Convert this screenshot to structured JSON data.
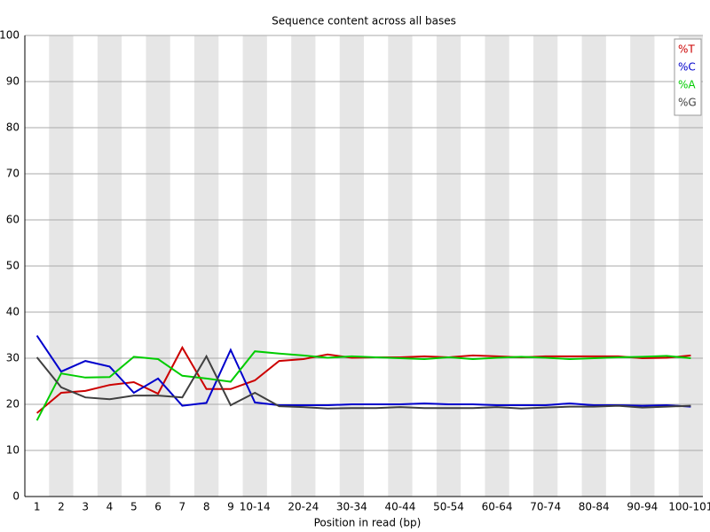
{
  "chart_data": {
    "type": "line",
    "title": "Sequence content across all bases",
    "x_label": "Position in read (bp)",
    "categories": [
      "1",
      "2",
      "3",
      "4",
      "5",
      "6",
      "7",
      "8",
      "9",
      "10-14",
      null,
      "20-24",
      null,
      "30-34",
      null,
      "40-44",
      null,
      "50-54",
      null,
      "60-64",
      null,
      "70-74",
      null,
      "80-84",
      null,
      "90-94",
      null,
      "100-101"
    ],
    "series": [
      {
        "name": "%T",
        "color": "#cc0000",
        "values": [
          18.1,
          22.5,
          22.9,
          24.2,
          24.8,
          22.3,
          32.3,
          23.3,
          23.3,
          25.2,
          29.4,
          29.8,
          30.8,
          30.1,
          30.2,
          30.2,
          30.4,
          30.2,
          30.6,
          30.4,
          30.2,
          30.4,
          30.4,
          30.4,
          30.4,
          30.0,
          30.1,
          30.6
        ]
      },
      {
        "name": "%C",
        "color": "#0000cc",
        "values": [
          34.9,
          27.1,
          29.4,
          28.2,
          22.5,
          25.6,
          19.7,
          20.3,
          31.8,
          20.4,
          19.8,
          19.8,
          19.8,
          20.0,
          20.0,
          20.0,
          20.2,
          20.0,
          20.0,
          19.8,
          19.8,
          19.8,
          20.2,
          19.8,
          19.8,
          19.7,
          19.8,
          19.5
        ]
      },
      {
        "name": "%A",
        "color": "#00cc00",
        "values": [
          16.5,
          26.7,
          25.8,
          25.9,
          30.3,
          29.8,
          26.2,
          25.6,
          24.9,
          31.5,
          31.0,
          30.6,
          30.1,
          30.4,
          30.2,
          30.0,
          29.8,
          30.2,
          29.8,
          30.1,
          30.3,
          30.1,
          29.8,
          30.0,
          30.2,
          30.3,
          30.5,
          30.0
        ]
      },
      {
        "name": "%G",
        "color": "#404040",
        "values": [
          30.2,
          23.7,
          21.5,
          21.1,
          21.9,
          21.9,
          21.5,
          30.4,
          19.8,
          22.5,
          19.6,
          19.4,
          19.1,
          19.2,
          19.2,
          19.4,
          19.2,
          19.2,
          19.2,
          19.4,
          19.1,
          19.3,
          19.5,
          19.5,
          19.7,
          19.3,
          19.5,
          19.7
        ]
      }
    ],
    "ylim": [
      0,
      100
    ],
    "yticks": [
      0,
      10,
      20,
      30,
      40,
      50,
      60,
      70,
      80,
      90,
      100
    ],
    "grid": true,
    "legend": "top-right"
  }
}
